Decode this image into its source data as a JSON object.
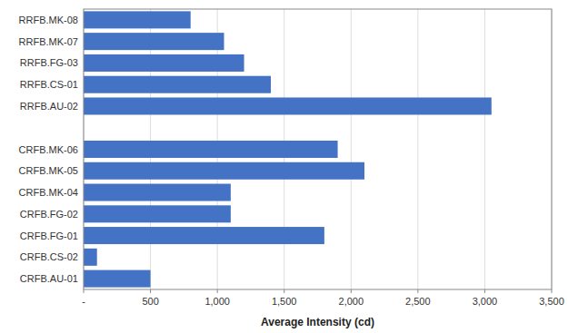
{
  "chart_data": {
    "type": "bar",
    "orientation": "horizontal",
    "xlabel": "Average Intensity (cd)",
    "categories": [
      "RRFB.MK-08",
      "RRFB.MK-07",
      "RRFB.FG-03",
      "RRFB.CS-01",
      "RRFB.AU-02",
      null,
      "CRFB.MK-06",
      "CRFB.MK-05",
      "CRFB.MK-04",
      "CRFB.FG-02",
      "CRFB.FG-01",
      "CRFB.CS-02",
      "CRFB.AU-01"
    ],
    "values": [
      800,
      1050,
      1200,
      1400,
      3050,
      0,
      1900,
      2100,
      1100,
      1100,
      1800,
      100,
      500
    ],
    "color": "#4472C4",
    "xlim": [
      0,
      3500
    ],
    "xticks": [
      {
        "value": 0,
        "label": "-"
      },
      500,
      {
        "value": 1000,
        "label": "1,000"
      },
      {
        "value": 1500,
        "label": "1,500"
      },
      {
        "value": 2000,
        "label": "2,000"
      },
      {
        "value": 2500,
        "label": "2,500"
      },
      {
        "value": 3000,
        "label": "3,000"
      },
      {
        "value": 3500,
        "label": "3,500"
      }
    ],
    "grid": true
  }
}
